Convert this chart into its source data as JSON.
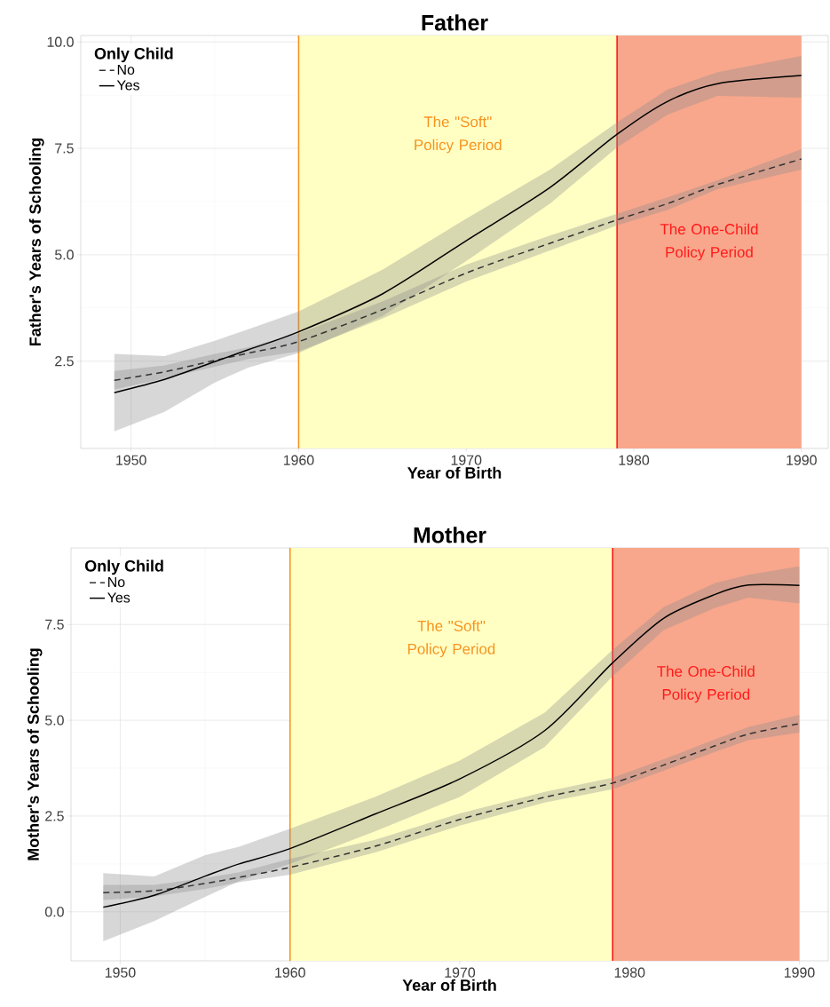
{
  "chart_data": [
    {
      "type": "line",
      "title": "Father",
      "xlabel": "Year of Birth",
      "ylabel": "Father's Years of Schooling",
      "legend_title": "Only Child",
      "legend": "top left",
      "grid": true,
      "xlim": [
        1947,
        1991.6
      ],
      "ylim": [
        0.45,
        10.15
      ],
      "xticks": [
        1950,
        1960,
        1970,
        1980,
        1990
      ],
      "yticks": [
        {
          "value": 2.5,
          "label": "2.5"
        },
        {
          "value": 5,
          "label": "5.0"
        },
        {
          "value": 7.5,
          "label": "7.5"
        },
        {
          "value": 10,
          "label": "10.0"
        }
      ],
      "x": [
        1949,
        1952,
        1955,
        1957,
        1960,
        1965,
        1970,
        1975,
        1979,
        1982,
        1985,
        1990
      ],
      "series": [
        {
          "name": "No",
          "color": "#333333",
          "line_style": "dashed",
          "values": [
            2.05,
            2.25,
            2.52,
            2.69,
            2.96,
            3.71,
            4.57,
            5.27,
            5.82,
            6.2,
            6.65,
            7.25
          ],
          "lower": [
            1.83,
            2.1,
            2.37,
            2.55,
            2.73,
            3.5,
            4.37,
            5.1,
            5.69,
            6.05,
            6.54,
            7.0
          ],
          "upper": [
            2.27,
            2.4,
            2.67,
            2.83,
            3.15,
            3.9,
            4.77,
            5.45,
            5.96,
            6.35,
            6.75,
            7.48
          ]
        },
        {
          "name": "Yes",
          "color": "#000000",
          "line_style": "solid",
          "values": [
            1.76,
            2.07,
            2.49,
            2.77,
            3.19,
            4.08,
            5.33,
            6.58,
            7.83,
            8.6,
            9.02,
            9.21
          ],
          "lower": [
            0.85,
            1.31,
            2.0,
            2.35,
            2.69,
            3.56,
            4.85,
            6.2,
            7.52,
            8.29,
            8.73,
            8.69
          ],
          "upper": [
            2.67,
            2.62,
            2.98,
            3.25,
            3.67,
            4.65,
            5.85,
            7.0,
            8.11,
            8.88,
            9.29,
            9.67
          ]
        }
      ],
      "bands": [
        {
          "axis": "x",
          "from": 1960,
          "to": 1979,
          "label": "The \"Soft\" Policy Period",
          "color": "#ffffc4"
        },
        {
          "axis": "x",
          "from": 1979,
          "to": 1990,
          "label": "The One-Child Policy Period",
          "color": "#f8a78c"
        }
      ],
      "ref_lines": [
        {
          "axis": "x",
          "value": 1960,
          "color": "#f7931e"
        },
        {
          "axis": "x",
          "value": 1979,
          "color": "#ff1a1a"
        }
      ]
    },
    {
      "type": "line",
      "title": "Mother",
      "xlabel": "Year of Birth",
      "ylabel": "Mother's Years of Schooling",
      "legend_title": "Only Child",
      "legend": "top left",
      "grid": true,
      "xlim": [
        1947.1,
        1991.7
      ],
      "ylim": [
        -1.28,
        9.5
      ],
      "xticks": [
        1950,
        1960,
        1970,
        1980,
        1990
      ],
      "yticks": [
        {
          "value": 0,
          "label": "0.0"
        },
        {
          "value": 2.5,
          "label": "2.5"
        },
        {
          "value": 5,
          "label": "5.0"
        },
        {
          "value": 7.5,
          "label": "7.5"
        }
      ],
      "x": [
        1949,
        1952,
        1955,
        1957,
        1960,
        1965,
        1970,
        1975,
        1979,
        1982,
        1985,
        1987,
        1990
      ],
      "series": [
        {
          "name": "No",
          "color": "#333333",
          "line_style": "dashed",
          "values": [
            0.5,
            0.55,
            0.74,
            0.9,
            1.16,
            1.71,
            2.41,
            2.99,
            3.36,
            3.83,
            4.33,
            4.64,
            4.91
          ],
          "lower": [
            0.31,
            0.4,
            0.6,
            0.77,
            0.97,
            1.55,
            2.25,
            2.85,
            3.2,
            3.68,
            4.17,
            4.48,
            4.68
          ],
          "upper": [
            0.7,
            0.7,
            0.88,
            1.03,
            1.38,
            1.88,
            2.57,
            3.13,
            3.5,
            3.98,
            4.5,
            4.82,
            5.14
          ]
        },
        {
          "name": "Yes",
          "color": "#000000",
          "line_style": "solid",
          "values": [
            0.12,
            0.43,
            0.93,
            1.25,
            1.65,
            2.55,
            3.47,
            4.73,
            6.5,
            7.66,
            8.28,
            8.53,
            8.52
          ],
          "lower": [
            -0.77,
            -0.24,
            0.39,
            0.8,
            1.25,
            2.1,
            3.0,
            4.3,
            6.15,
            7.35,
            7.93,
            8.2,
            8.05
          ],
          "upper": [
            1.01,
            0.92,
            1.48,
            1.7,
            2.17,
            3.0,
            3.95,
            5.2,
            6.84,
            7.95,
            8.58,
            8.8,
            9.02
          ]
        }
      ],
      "bands": [
        {
          "axis": "x",
          "from": 1960,
          "to": 1979,
          "label": "The \"Soft\" Policy Period",
          "color": "#ffffc4"
        },
        {
          "axis": "x",
          "from": 1979,
          "to": 1990,
          "label": "The One-Child Policy Period",
          "color": "#f8a78c"
        }
      ],
      "ref_lines": [
        {
          "axis": "x",
          "value": 1960,
          "color": "#f7931e"
        },
        {
          "axis": "x",
          "value": 1979,
          "color": "#ff1a1a"
        }
      ]
    }
  ]
}
